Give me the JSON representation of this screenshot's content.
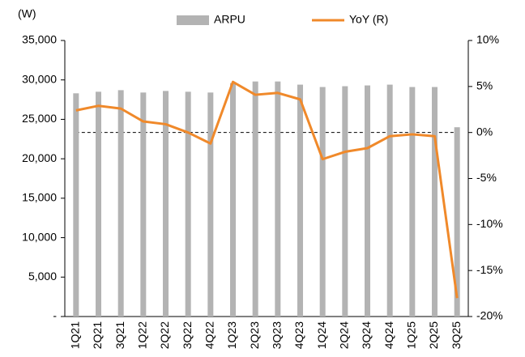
{
  "chart_data": {
    "type": "bar_line",
    "y_unit_label": "(W)",
    "categories": [
      "1Q21",
      "2Q21",
      "3Q21",
      "1Q22",
      "2Q22",
      "3Q22",
      "4Q22",
      "1Q23",
      "2Q23",
      "3Q23",
      "4Q23",
      "1Q24",
      "2Q24",
      "3Q24",
      "4Q24",
      "1Q25",
      "2Q25",
      "3Q25"
    ],
    "series": [
      {
        "name": "ARPU",
        "type": "bar",
        "color": "#b3b3b3",
        "axis": "y",
        "values": [
          28300,
          28500,
          28700,
          28400,
          28600,
          28500,
          28400,
          29600,
          29800,
          29800,
          29400,
          29100,
          29200,
          29300,
          29400,
          29100,
          29100,
          24000
        ]
      },
      {
        "name": "YoY (R)",
        "type": "line",
        "color": "#f0892a",
        "axis": "y2",
        "values": [
          2.4,
          2.9,
          2.6,
          1.2,
          0.9,
          0.0,
          -1.2,
          5.5,
          4.1,
          4.3,
          3.6,
          -2.9,
          -2.1,
          -1.7,
          -0.4,
          -0.2,
          -0.4,
          -18.0
        ]
      }
    ],
    "ylim": [
      0,
      35000
    ],
    "yticks": [
      {
        "value": 0,
        "label": "-"
      },
      {
        "value": 5000,
        "label": "5,000"
      },
      {
        "value": 10000,
        "label": "10,000"
      },
      {
        "value": 15000,
        "label": "15,000"
      },
      {
        "value": 20000,
        "label": "20,000"
      },
      {
        "value": 25000,
        "label": "25,000"
      },
      {
        "value": 30000,
        "label": "30,000"
      },
      {
        "value": 35000,
        "label": "35,000"
      }
    ],
    "y2lim": [
      -20,
      10
    ],
    "y2ticks": [
      {
        "value": -20,
        "label": "-20%"
      },
      {
        "value": -15,
        "label": "-15%"
      },
      {
        "value": -10,
        "label": "-10%"
      },
      {
        "value": -5,
        "label": "-5%"
      },
      {
        "value": 0,
        "label": "0%"
      },
      {
        "value": 5,
        "label": "5%"
      },
      {
        "value": 10,
        "label": "10%"
      }
    ],
    "y2_zero_line": true,
    "legend": "top"
  }
}
